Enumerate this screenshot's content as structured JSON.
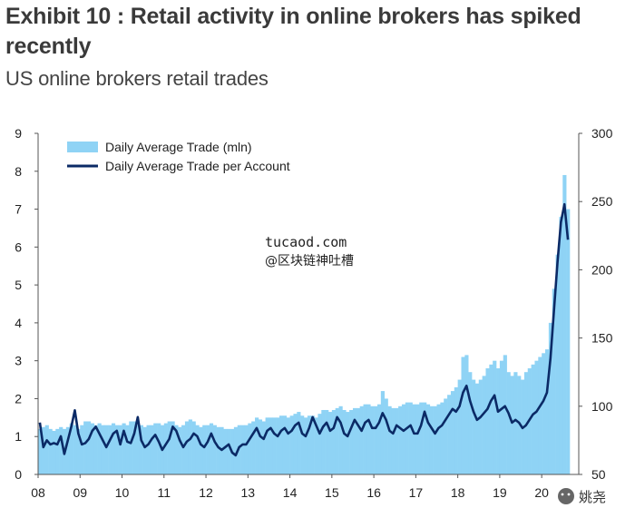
{
  "header": {
    "title": "Exhibit 10 : Retail activity in online brokers has spiked recently",
    "subtitle": "US online brokers retail trades"
  },
  "watermark": {
    "line1": "tucaod.com",
    "line2": "@区块链神吐槽",
    "corner_text": "姚尧"
  },
  "colors": {
    "bars": "#8fd3f5",
    "line": "#0b2a66",
    "axis": "#555555"
  },
  "chart_data": {
    "type": "bar+line",
    "legend": [
      "Daily Average Trade (mln)",
      "Daily Average Trade per Account"
    ],
    "legend_position": "top-left",
    "grid": false,
    "x_tick_labels": [
      "08",
      "09",
      "10",
      "11",
      "12",
      "13",
      "14",
      "15",
      "16",
      "17",
      "18",
      "19",
      "20"
    ],
    "left_axis": {
      "ylim": [
        0,
        9
      ],
      "ticks": [
        0,
        1,
        2,
        3,
        4,
        5,
        6,
        7,
        8,
        9
      ]
    },
    "right_axis": {
      "ylim": [
        50,
        300
      ],
      "ticks": [
        50,
        100,
        150,
        200,
        250,
        300
      ]
    },
    "series": [
      {
        "name": "Daily Average Trade (mln)",
        "axis": "left",
        "kind": "bar",
        "start": "2008-01",
        "frequency": "monthly",
        "values": [
          1.2,
          1.25,
          1.3,
          1.2,
          1.15,
          1.2,
          1.25,
          1.2,
          1.25,
          1.35,
          1.3,
          1.2,
          1.3,
          1.4,
          1.4,
          1.35,
          1.3,
          1.35,
          1.3,
          1.3,
          1.3,
          1.35,
          1.3,
          1.3,
          1.35,
          1.3,
          1.4,
          1.4,
          1.3,
          1.3,
          1.25,
          1.3,
          1.3,
          1.35,
          1.35,
          1.3,
          1.35,
          1.4,
          1.4,
          1.3,
          1.25,
          1.3,
          1.4,
          1.45,
          1.4,
          1.3,
          1.25,
          1.3,
          1.3,
          1.35,
          1.3,
          1.25,
          1.25,
          1.2,
          1.2,
          1.2,
          1.25,
          1.3,
          1.3,
          1.3,
          1.35,
          1.4,
          1.5,
          1.45,
          1.4,
          1.5,
          1.5,
          1.5,
          1.5,
          1.55,
          1.55,
          1.5,
          1.55,
          1.6,
          1.65,
          1.55,
          1.5,
          1.55,
          1.55,
          1.5,
          1.6,
          1.7,
          1.7,
          1.65,
          1.7,
          1.75,
          1.8,
          1.7,
          1.65,
          1.7,
          1.75,
          1.75,
          1.8,
          1.85,
          1.85,
          1.8,
          1.8,
          1.85,
          2.2,
          2.0,
          1.8,
          1.75,
          1.75,
          1.8,
          1.85,
          1.9,
          1.9,
          1.85,
          1.85,
          1.9,
          1.9,
          1.85,
          1.8,
          1.8,
          1.85,
          1.9,
          2.0,
          2.1,
          2.2,
          2.3,
          2.5,
          3.1,
          3.15,
          2.7,
          2.5,
          2.4,
          2.5,
          2.6,
          2.8,
          2.9,
          3.0,
          2.8,
          3.0,
          3.15,
          2.7,
          2.6,
          2.7,
          2.6,
          2.5,
          2.7,
          2.8,
          2.9,
          3.0,
          3.1,
          3.2,
          3.3,
          4.0,
          4.9,
          5.8,
          6.8,
          7.9,
          7.0
        ]
      },
      {
        "name": "Daily Average Trade per Account",
        "axis": "right",
        "kind": "line",
        "start": "2008-01",
        "frequency": "monthly",
        "values": [
          88,
          70,
          75,
          72,
          73,
          72,
          78,
          65,
          75,
          85,
          97,
          80,
          72,
          73,
          76,
          82,
          85,
          80,
          75,
          70,
          75,
          80,
          82,
          72,
          82,
          74,
          73,
          80,
          92,
          75,
          70,
          72,
          76,
          79,
          74,
          68,
          72,
          76,
          85,
          82,
          75,
          70,
          74,
          76,
          80,
          78,
          72,
          70,
          74,
          80,
          74,
          70,
          68,
          70,
          72,
          66,
          64,
          70,
          72,
          72,
          76,
          80,
          84,
          78,
          76,
          82,
          84,
          80,
          78,
          82,
          84,
          80,
          82,
          86,
          88,
          80,
          78,
          84,
          92,
          86,
          80,
          85,
          88,
          82,
          84,
          92,
          88,
          80,
          78,
          84,
          90,
          86,
          82,
          88,
          90,
          84,
          84,
          88,
          95,
          90,
          82,
          80,
          86,
          84,
          82,
          84,
          86,
          80,
          80,
          86,
          96,
          88,
          84,
          80,
          84,
          86,
          90,
          94,
          98,
          96,
          100,
          110,
          115,
          104,
          96,
          90,
          92,
          95,
          98,
          104,
          108,
          96,
          98,
          100,
          95,
          88,
          90,
          88,
          84,
          86,
          90,
          94,
          96,
          100,
          104,
          110,
          135,
          170,
          205,
          235,
          248,
          222
        ]
      }
    ]
  }
}
